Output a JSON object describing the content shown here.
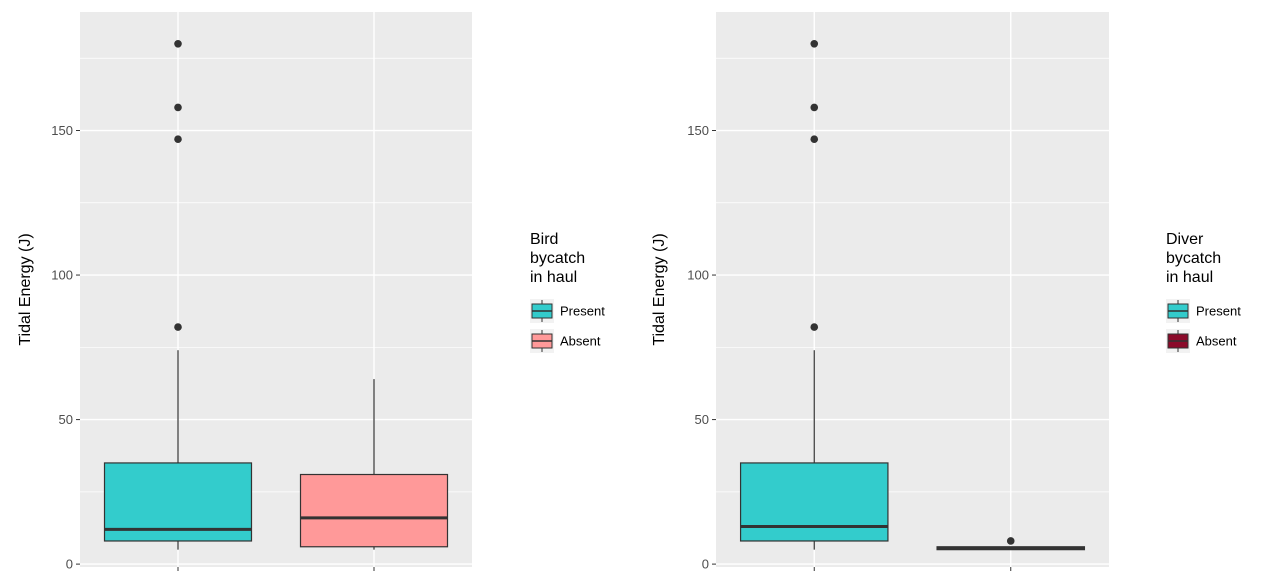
{
  "chart_data": [
    {
      "type": "box",
      "title": "",
      "xlabel": "",
      "ylabel": "Tidal Energy (J)",
      "ylim": [
        -1,
        191
      ],
      "yticks": [
        0,
        50,
        100,
        150
      ],
      "grid": true,
      "legend": {
        "title": [
          "Bird",
          "bycatch",
          "in haul"
        ],
        "placement": "right",
        "entries": [
          "Present",
          "Absent"
        ]
      },
      "groups": [
        {
          "name": "Present",
          "color": "#33CCCC",
          "min": 5,
          "q1": 8,
          "median": 12,
          "q3": 35,
          "max": 74,
          "outliers": [
            82,
            147,
            158,
            180
          ]
        },
        {
          "name": "Absent",
          "color": "#FF9999",
          "min": 5,
          "q1": 6,
          "median": 16,
          "q3": 31,
          "max": 64,
          "outliers": []
        }
      ]
    },
    {
      "type": "box",
      "title": "",
      "xlabel": "",
      "ylabel": "Tidal Energy (J)",
      "ylim": [
        -1,
        191
      ],
      "yticks": [
        0,
        50,
        100,
        150
      ],
      "grid": true,
      "legend": {
        "title": [
          "Diver",
          "bycatch",
          "in haul"
        ],
        "placement": "right",
        "entries": [
          "Present",
          "Absent"
        ]
      },
      "groups": [
        {
          "name": "Present",
          "color": "#33CCCC",
          "min": 5,
          "q1": 8,
          "median": 13,
          "q3": 35,
          "max": 74,
          "outliers": [
            82,
            147,
            158,
            180
          ]
        },
        {
          "name": "Absent",
          "color": "#8B0A2A",
          "min": 5,
          "q1": 5,
          "median": 5.5,
          "q3": 6,
          "max": 6,
          "outliers": [
            8
          ]
        }
      ]
    }
  ]
}
